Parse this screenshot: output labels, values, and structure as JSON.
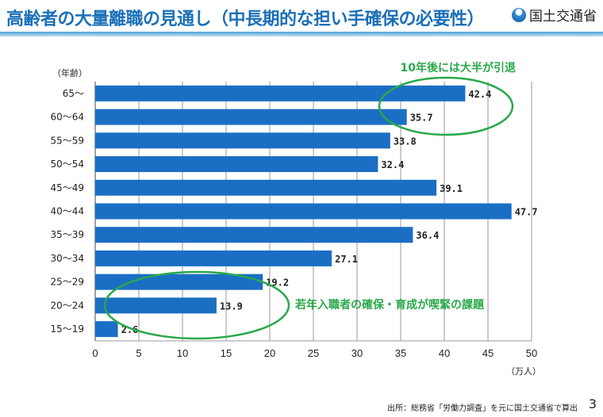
{
  "header": {
    "title": "高齢者の大量離職の見通し（中長期的な担い手確保の必要性）",
    "logo_text": "国土交通省"
  },
  "chart_data": {
    "type": "bar",
    "orientation": "horizontal",
    "categories": [
      "65～",
      "60～64",
      "55～59",
      "50～54",
      "45～49",
      "40～44",
      "35～39",
      "30～34",
      "25～29",
      "20～24",
      "15～19"
    ],
    "values": [
      42.4,
      35.7,
      33.8,
      32.4,
      39.1,
      47.7,
      36.4,
      27.1,
      19.2,
      13.9,
      2.6
    ],
    "value_labels": [
      "42.4",
      "35.7",
      "33.8",
      "32.4",
      "39.1",
      "47.7",
      "36.4",
      "27.1",
      "19.2",
      "13.9",
      "2.6"
    ],
    "xlim": [
      0,
      50
    ],
    "xticks": [
      "0",
      "5",
      "10",
      "15",
      "20",
      "25",
      "30",
      "35",
      "40",
      "45",
      "50"
    ],
    "ylabel": "（年齢）",
    "xlabel": "（万人）",
    "grid": "vertical",
    "bar_color": "#1a6fc4",
    "annotations": [
      {
        "text": "10年後には大半が引退",
        "color": "#2aa84a"
      },
      {
        "text": "若年入職者の確保・育成が喫緊の課題",
        "color": "#2aa84a"
      }
    ]
  },
  "footer": {
    "source": "出所：総務省「労働力調査」を元に国土交通省で算出",
    "page_number": "3"
  }
}
